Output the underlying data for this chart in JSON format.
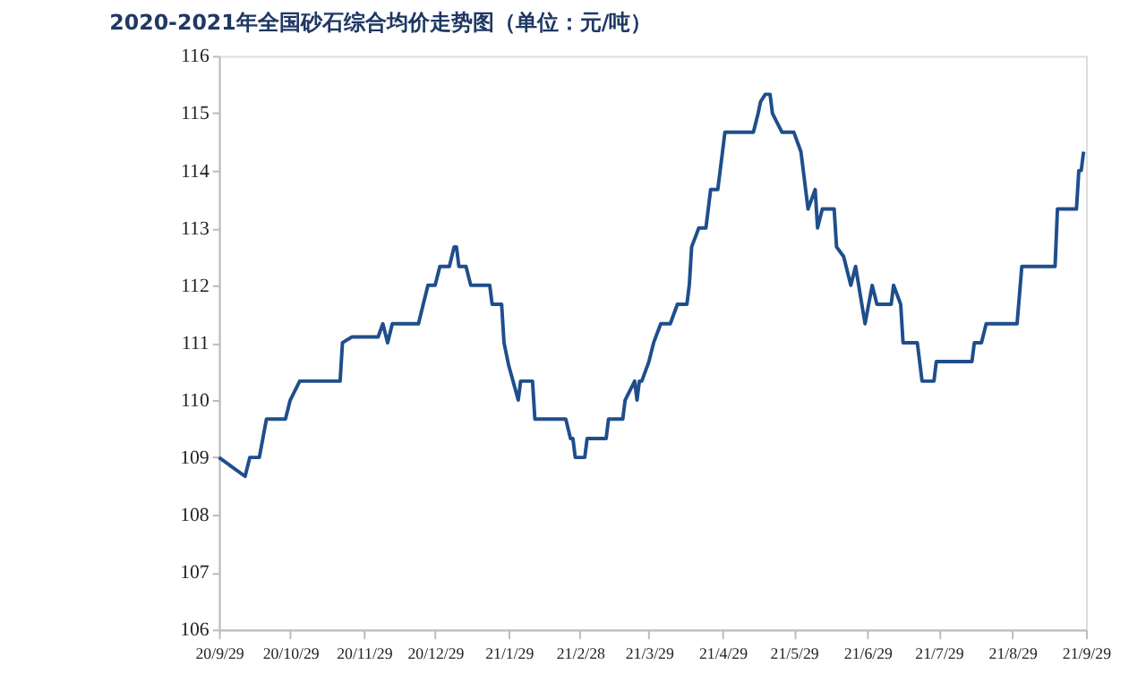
{
  "chart_data": {
    "type": "line",
    "title": "2020-2021年全国砂石综合均价走势图（单位：元/吨）",
    "x": [
      "2020-09-29",
      "2020-10-10",
      "2020-10-12",
      "2020-10-16",
      "2020-10-19",
      "2020-10-27",
      "2020-10-29",
      "2020-11-02",
      "2020-11-19",
      "2020-11-20",
      "2020-11-24",
      "2020-12-05",
      "2020-12-07",
      "2020-12-09",
      "2020-12-11",
      "2020-12-22",
      "2020-12-24",
      "2020-12-26",
      "2020-12-29",
      "2020-12-31",
      "2021-01-04",
      "2021-01-06",
      "2021-01-07",
      "2021-01-08",
      "2021-01-11",
      "2021-01-13",
      "2021-01-21",
      "2021-01-22",
      "2021-01-26",
      "2021-01-27",
      "2021-01-29",
      "2021-02-02",
      "2021-02-03",
      "2021-02-08",
      "2021-02-09",
      "2021-02-22",
      "2021-02-24",
      "2021-02-25",
      "2021-02-26",
      "2021-03-02",
      "2021-03-03",
      "2021-03-11",
      "2021-03-12",
      "2021-03-18",
      "2021-03-19",
      "2021-03-23",
      "2021-03-24",
      "2021-03-25",
      "2021-03-26",
      "2021-03-29",
      "2021-03-31",
      "2021-04-03",
      "2021-04-07",
      "2021-04-10",
      "2021-04-14",
      "2021-04-15",
      "2021-04-16",
      "2021-04-19",
      "2021-04-22",
      "2021-04-24",
      "2021-04-27",
      "2021-04-29",
      "2021-04-30",
      "2021-05-12",
      "2021-05-14",
      "2021-05-15",
      "2021-05-17",
      "2021-05-19",
      "2021-05-20",
      "2021-05-24",
      "2021-05-29",
      "2021-06-01",
      "2021-06-02",
      "2021-06-04",
      "2021-06-07",
      "2021-06-08",
      "2021-06-10",
      "2021-06-15",
      "2021-06-16",
      "2021-06-19",
      "2021-06-22",
      "2021-06-24",
      "2021-06-28",
      "2021-07-01",
      "2021-07-03",
      "2021-07-09",
      "2021-07-10",
      "2021-07-13",
      "2021-07-14",
      "2021-07-20",
      "2021-07-22",
      "2021-07-27",
      "2021-07-28",
      "2021-08-12",
      "2021-08-13",
      "2021-08-16",
      "2021-08-18",
      "2021-08-31",
      "2021-09-02",
      "2021-09-16",
      "2021-09-17",
      "2021-09-25",
      "2021-09-26",
      "2021-09-27",
      "2021-09-28"
    ],
    "series": [
      {
        "color": "#1f4e8c",
        "values": [
          109.0,
          108.67,
          109.0,
          109.0,
          109.67,
          109.67,
          110.0,
          110.33,
          110.33,
          111.0,
          111.1,
          111.1,
          111.33,
          111.0,
          111.33,
          111.33,
          111.67,
          112.0,
          112.0,
          112.33,
          112.33,
          112.67,
          112.67,
          112.33,
          112.33,
          112.0,
          112.0,
          111.67,
          111.67,
          111.0,
          110.6,
          110.0,
          110.33,
          110.33,
          109.67,
          109.67,
          109.33,
          109.33,
          109.0,
          109.0,
          109.33,
          109.33,
          109.67,
          109.67,
          110.0,
          110.33,
          110.0,
          110.33,
          110.33,
          110.67,
          111.0,
          111.33,
          111.33,
          111.67,
          111.67,
          112.0,
          112.67,
          113.0,
          113.0,
          113.67,
          113.67,
          114.33,
          114.67,
          114.67,
          115.0,
          115.2,
          115.33,
          115.33,
          115.0,
          114.67,
          114.67,
          114.33,
          114.0,
          113.33,
          113.67,
          113.0,
          113.33,
          113.33,
          112.67,
          112.5,
          112.0,
          112.33,
          111.33,
          112.0,
          111.67,
          111.67,
          112.0,
          111.67,
          111.0,
          111.0,
          110.33,
          110.33,
          110.67,
          110.67,
          111.0,
          111.0,
          111.33,
          111.33,
          112.33,
          112.33,
          113.33,
          113.33,
          114.0,
          114.0,
          114.33
        ]
      }
    ],
    "xlim": [
      "2020-09-29",
      "2021-09-29"
    ],
    "xticks": [
      {
        "value": "2020-09-29",
        "label": "20/9/29"
      },
      {
        "value": "2020-10-29",
        "label": "20/10/29"
      },
      {
        "value": "2020-11-29",
        "label": "20/11/29"
      },
      {
        "value": "2020-12-29",
        "label": "20/12/29"
      },
      {
        "value": "2021-01-29",
        "label": "21/1/29"
      },
      {
        "value": "2021-02-28",
        "label": "21/2/28"
      },
      {
        "value": "2021-03-29",
        "label": "21/3/29"
      },
      {
        "value": "2021-04-29",
        "label": "21/4/29"
      },
      {
        "value": "2021-05-29",
        "label": "21/5/29"
      },
      {
        "value": "2021-06-29",
        "label": "21/6/29"
      },
      {
        "value": "2021-07-29",
        "label": "21/7/29"
      },
      {
        "value": "2021-08-29",
        "label": "21/8/29"
      },
      {
        "value": "2021-09-29",
        "label": "21/9/29"
      }
    ],
    "ylim": [
      106,
      116
    ],
    "yticks": [
      106,
      107,
      108,
      109,
      110,
      111,
      112,
      113,
      114,
      115,
      116
    ],
    "grid": false,
    "marker": "none",
    "line_style": "solid"
  }
}
